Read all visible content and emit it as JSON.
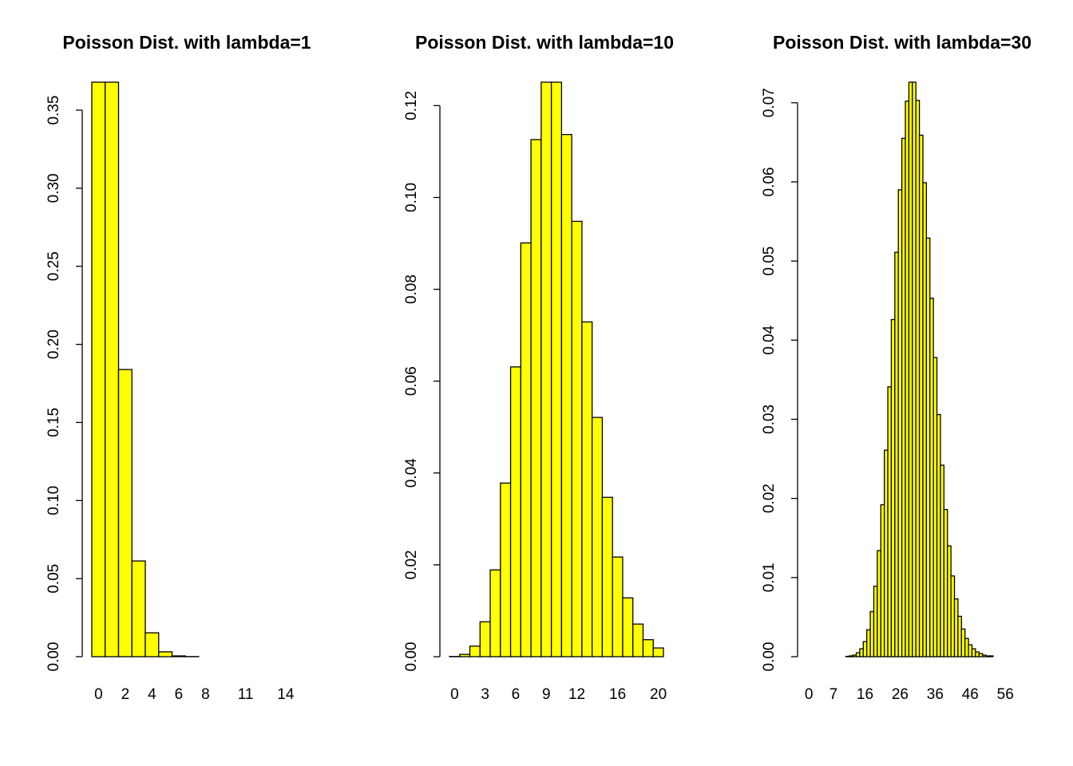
{
  "chart_data": [
    {
      "type": "bar",
      "title": "Poisson Dist. with lambda=1",
      "color": "#ffff00",
      "categories": [
        "0",
        null,
        "2",
        null,
        "4",
        null,
        "6",
        null,
        "8",
        null,
        null,
        "11",
        null,
        null,
        "14",
        null
      ],
      "values": [
        0.3679,
        0.3679,
        0.1839,
        0.0613,
        0.0153,
        0.0031,
        0.0005,
        0.0001,
        0,
        0,
        0,
        0,
        0,
        0,
        0,
        0
      ],
      "ylim": [
        0,
        0.3679
      ],
      "yticks": [
        {
          "value": 0,
          "label": "0.00"
        },
        {
          "value": 0.05,
          "label": "0.05"
        },
        {
          "value": 0.1,
          "label": "0.10"
        },
        {
          "value": 0.15,
          "label": "0.15"
        },
        {
          "value": 0.2,
          "label": "0.20"
        },
        {
          "value": 0.25,
          "label": "0.25"
        },
        {
          "value": 0.3,
          "label": "0.30"
        },
        {
          "value": 0.35,
          "label": "0.35"
        }
      ]
    },
    {
      "type": "bar",
      "title": "Poisson Dist. with lambda=10",
      "color": "#ffff00",
      "categories": [
        "0",
        null,
        null,
        "3",
        null,
        null,
        "6",
        null,
        null,
        "9",
        null,
        null,
        "12",
        null,
        null,
        null,
        "16",
        null,
        null,
        null,
        "20"
      ],
      "values": [
        5e-05,
        0.0005,
        0.0023,
        0.0076,
        0.0189,
        0.0378,
        0.0631,
        0.0901,
        0.1126,
        0.1251,
        0.1251,
        0.1137,
        0.0948,
        0.0729,
        0.0521,
        0.0347,
        0.0217,
        0.0128,
        0.0071,
        0.0037,
        0.0019
      ],
      "ylim": [
        0,
        0.1251
      ],
      "yticks": [
        {
          "value": 0,
          "label": "0.00"
        },
        {
          "value": 0.02,
          "label": "0.02"
        },
        {
          "value": 0.04,
          "label": "0.04"
        },
        {
          "value": 0.06,
          "label": "0.06"
        },
        {
          "value": 0.08,
          "label": "0.08"
        },
        {
          "value": 0.1,
          "label": "0.10"
        },
        {
          "value": 0.12,
          "label": "0.12"
        }
      ]
    },
    {
      "type": "bar",
      "title": "Poisson Dist. with lambda=30",
      "color": "#ffff00",
      "categories": [
        "0",
        null,
        null,
        null,
        null,
        null,
        null,
        "7",
        null,
        null,
        null,
        null,
        null,
        null,
        null,
        null,
        "16",
        null,
        null,
        null,
        null,
        null,
        null,
        null,
        null,
        null,
        "26",
        null,
        null,
        null,
        null,
        null,
        null,
        null,
        null,
        null,
        "36",
        null,
        null,
        null,
        null,
        null,
        null,
        null,
        null,
        null,
        "46",
        null,
        null,
        null,
        null,
        null,
        null,
        null,
        null,
        null,
        "56",
        null,
        null,
        null,
        null
      ],
      "values": [
        0,
        0,
        0,
        0,
        0,
        0,
        0,
        0,
        0,
        0,
        0,
        4e-05,
        0.0001,
        0.0002,
        0.0005,
        0.001,
        0.0019,
        0.0034,
        0.0057,
        0.0089,
        0.0134,
        0.0192,
        0.0261,
        0.0341,
        0.0426,
        0.0511,
        0.059,
        0.0655,
        0.0702,
        0.0726,
        0.0726,
        0.0703,
        0.0659,
        0.0599,
        0.0529,
        0.0453,
        0.0378,
        0.0306,
        0.0242,
        0.0186,
        0.014,
        0.0102,
        0.0073,
        0.0051,
        0.0035,
        0.0023,
        0.0015,
        0.001,
        0.0006,
        0.0004,
        0.0002,
        0.0001,
        0.0001,
        0,
        0,
        0,
        0,
        0,
        0,
        0,
        0
      ],
      "ylim": [
        0,
        0.0726
      ],
      "yticks": [
        {
          "value": 0,
          "label": "0.00"
        },
        {
          "value": 0.01,
          "label": "0.01"
        },
        {
          "value": 0.02,
          "label": "0.02"
        },
        {
          "value": 0.03,
          "label": "0.03"
        },
        {
          "value": 0.04,
          "label": "0.04"
        },
        {
          "value": 0.05,
          "label": "0.05"
        },
        {
          "value": 0.06,
          "label": "0.06"
        },
        {
          "value": 0.07,
          "label": "0.07"
        }
      ]
    }
  ]
}
